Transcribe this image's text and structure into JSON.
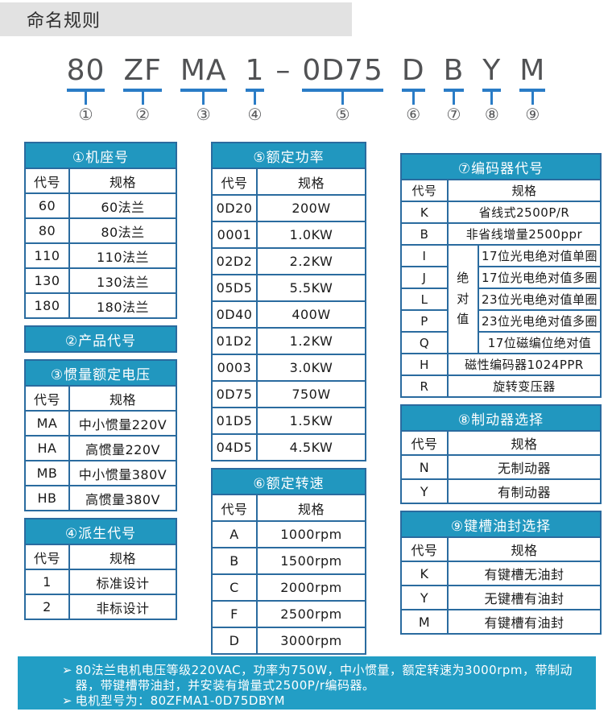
{
  "page_title": "命名规则",
  "model": {
    "separator": "–",
    "segments": [
      {
        "text": "80",
        "num": "①"
      },
      {
        "text": "ZF",
        "num": "②"
      },
      {
        "text": "MA",
        "num": "③"
      },
      {
        "text": "1",
        "num": "④"
      },
      {
        "text": "0D75",
        "num": "⑤"
      },
      {
        "text": "D",
        "num": "⑥"
      },
      {
        "text": "B",
        "num": "⑦"
      },
      {
        "text": "Y",
        "num": "⑧"
      },
      {
        "text": "M",
        "num": "⑨"
      }
    ]
  },
  "col_headers": {
    "code": "代号",
    "spec": "规格"
  },
  "tables": {
    "frame": {
      "title": "①机座号",
      "rows": [
        [
          "60",
          "60法兰"
        ],
        [
          "80",
          "80法兰"
        ],
        [
          "110",
          "110法兰"
        ],
        [
          "130",
          "130法兰"
        ],
        [
          "180",
          "180法兰"
        ]
      ]
    },
    "product": {
      "title": "②产品代号"
    },
    "inertia": {
      "title": "③惯量额定电压",
      "rows": [
        [
          "MA",
          "中小惯量220V"
        ],
        [
          "HA",
          "高惯量220V"
        ],
        [
          "MB",
          "中小惯量380V"
        ],
        [
          "HB",
          "高惯量380V"
        ]
      ]
    },
    "derive": {
      "title": "④派生代号",
      "rows": [
        [
          "1",
          "标准设计"
        ],
        [
          "2",
          "非标设计"
        ]
      ]
    },
    "power": {
      "title": "⑤额定功率",
      "rows": [
        [
          "0D20",
          "200W"
        ],
        [
          "0001",
          "1.0KW"
        ],
        [
          "02D2",
          "2.2KW"
        ],
        [
          "05D5",
          "5.5KW"
        ],
        [
          "0D40",
          "400W"
        ],
        [
          "01D2",
          "1.2KW"
        ],
        [
          "0003",
          "3.0KW"
        ],
        [
          "0D75",
          "750W"
        ],
        [
          "01D5",
          "1.5KW"
        ],
        [
          "04D5",
          "4.5KW"
        ]
      ]
    },
    "speed": {
      "title": "⑥额定转速",
      "rows": [
        [
          "A",
          "1000rpm"
        ],
        [
          "B",
          "1500rpm"
        ],
        [
          "C",
          "2000rpm"
        ],
        [
          "F",
          "2500rpm"
        ],
        [
          "D",
          "3000rpm"
        ]
      ]
    },
    "encoder": {
      "title": "⑦编码器代号",
      "rows_full": [
        [
          "K",
          "省线式2500P/R"
        ],
        [
          "B",
          "非省线增量2500ppr"
        ]
      ],
      "abs_label": "绝对值",
      "rows_abs": [
        [
          "I",
          "17位光电绝对值单圈"
        ],
        [
          "J",
          "17位光电绝对值多圈"
        ],
        [
          "L",
          "23位光电绝对值单圈"
        ],
        [
          "P",
          "23位光电绝对值多圈"
        ],
        [
          "Q",
          "17位磁编位绝对值"
        ]
      ],
      "rows_full2": [
        [
          "H",
          "磁性编码器1024PPR"
        ],
        [
          "R",
          "旋转变压器"
        ]
      ]
    },
    "brake": {
      "title": "⑧制动器选择",
      "rows": [
        [
          "N",
          "无制动器"
        ],
        [
          "Y",
          "有制动器"
        ]
      ]
    },
    "keyway": {
      "title": "⑨键槽油封选择",
      "rows": [
        [
          "K",
          "有键槽无油封"
        ],
        [
          "Y",
          "无键槽有油封"
        ],
        [
          "M",
          "有键槽有油封"
        ]
      ]
    }
  },
  "notes": {
    "bullet": "➢",
    "items": [
      "80法兰电机电压等级220VAC，功率为750W，中小惯量，额定转速为3000rpm，带制动器，带键槽带油封，并安装有增量式2500P/r编码器。",
      "电机型号为：80ZFMA1-0D75DBYM"
    ]
  },
  "colors": {
    "header_teal": "#2197BF",
    "border_blue": "#2A6B9F",
    "underline_blue": "#2A7CC6",
    "note_background": "#229EC5",
    "title_bar_gray": "#E2E2E2"
  }
}
